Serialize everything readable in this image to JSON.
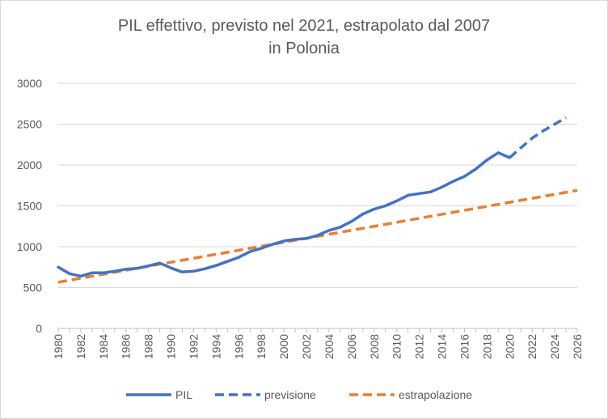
{
  "chart_data": {
    "type": "line",
    "title_line1": "PIL effettivo, previsto nel 2021, estrapolato dal 2007",
    "title_line2": "in Polonia",
    "xlabel": "",
    "ylabel": "",
    "xlim": [
      1980,
      2026
    ],
    "ylim": [
      0,
      3000
    ],
    "ytick_values": [
      0,
      500,
      1000,
      1500,
      2000,
      2500,
      3000
    ],
    "ytick_labels": [
      "0",
      "500",
      "1000",
      "1500",
      "2000",
      "2500",
      "3000"
    ],
    "xtick_values": [
      1980,
      1982,
      1984,
      1986,
      1988,
      1990,
      1992,
      1994,
      1996,
      1998,
      2000,
      2002,
      2004,
      2006,
      2008,
      2010,
      2012,
      2014,
      2016,
      2018,
      2020,
      2022,
      2024,
      2026
    ],
    "xtick_labels": [
      "1980",
      "1982",
      "1984",
      "1986",
      "1988",
      "1990",
      "1992",
      "1994",
      "1996",
      "1998",
      "2000",
      "2002",
      "2004",
      "2006",
      "2008",
      "2010",
      "2012",
      "2014",
      "2016",
      "2018",
      "2020",
      "2022",
      "2024",
      "2026"
    ],
    "grid": "horizontal",
    "legend_position": "bottom",
    "series": [
      {
        "name": "PIL",
        "style": "solid",
        "color": "#4472c4",
        "x": [
          1980,
          1981,
          1982,
          1983,
          1984,
          1985,
          1986,
          1987,
          1988,
          1989,
          1990,
          1991,
          1992,
          1993,
          1994,
          1995,
          1996,
          1997,
          1998,
          1999,
          2000,
          2001,
          2002,
          2003,
          2004,
          2005,
          2006,
          2007,
          2008,
          2009,
          2010,
          2011,
          2012,
          2013,
          2014,
          2015,
          2016,
          2017,
          2018,
          2019,
          2020
        ],
        "y": [
          750,
          670,
          640,
          680,
          680,
          700,
          725,
          735,
          765,
          800,
          740,
          690,
          700,
          730,
          770,
          820,
          870,
          940,
          980,
          1030,
          1070,
          1090,
          1100,
          1140,
          1200,
          1240,
          1310,
          1400,
          1460,
          1500,
          1560,
          1630,
          1650,
          1670,
          1730,
          1800,
          1860,
          1950,
          2060,
          2150,
          2090
        ]
      },
      {
        "name": "previsione",
        "style": "dashed",
        "color": "#4472c4",
        "x": [
          2020,
          2021,
          2022,
          2023,
          2024,
          2025
        ],
        "y": [
          2090,
          2210,
          2330,
          2420,
          2500,
          2580
        ]
      },
      {
        "name": "estrapolazione",
        "style": "dashed",
        "color": "#ed7d31",
        "x": [
          1980,
          2026
        ],
        "y": [
          565,
          1690
        ]
      }
    ]
  }
}
